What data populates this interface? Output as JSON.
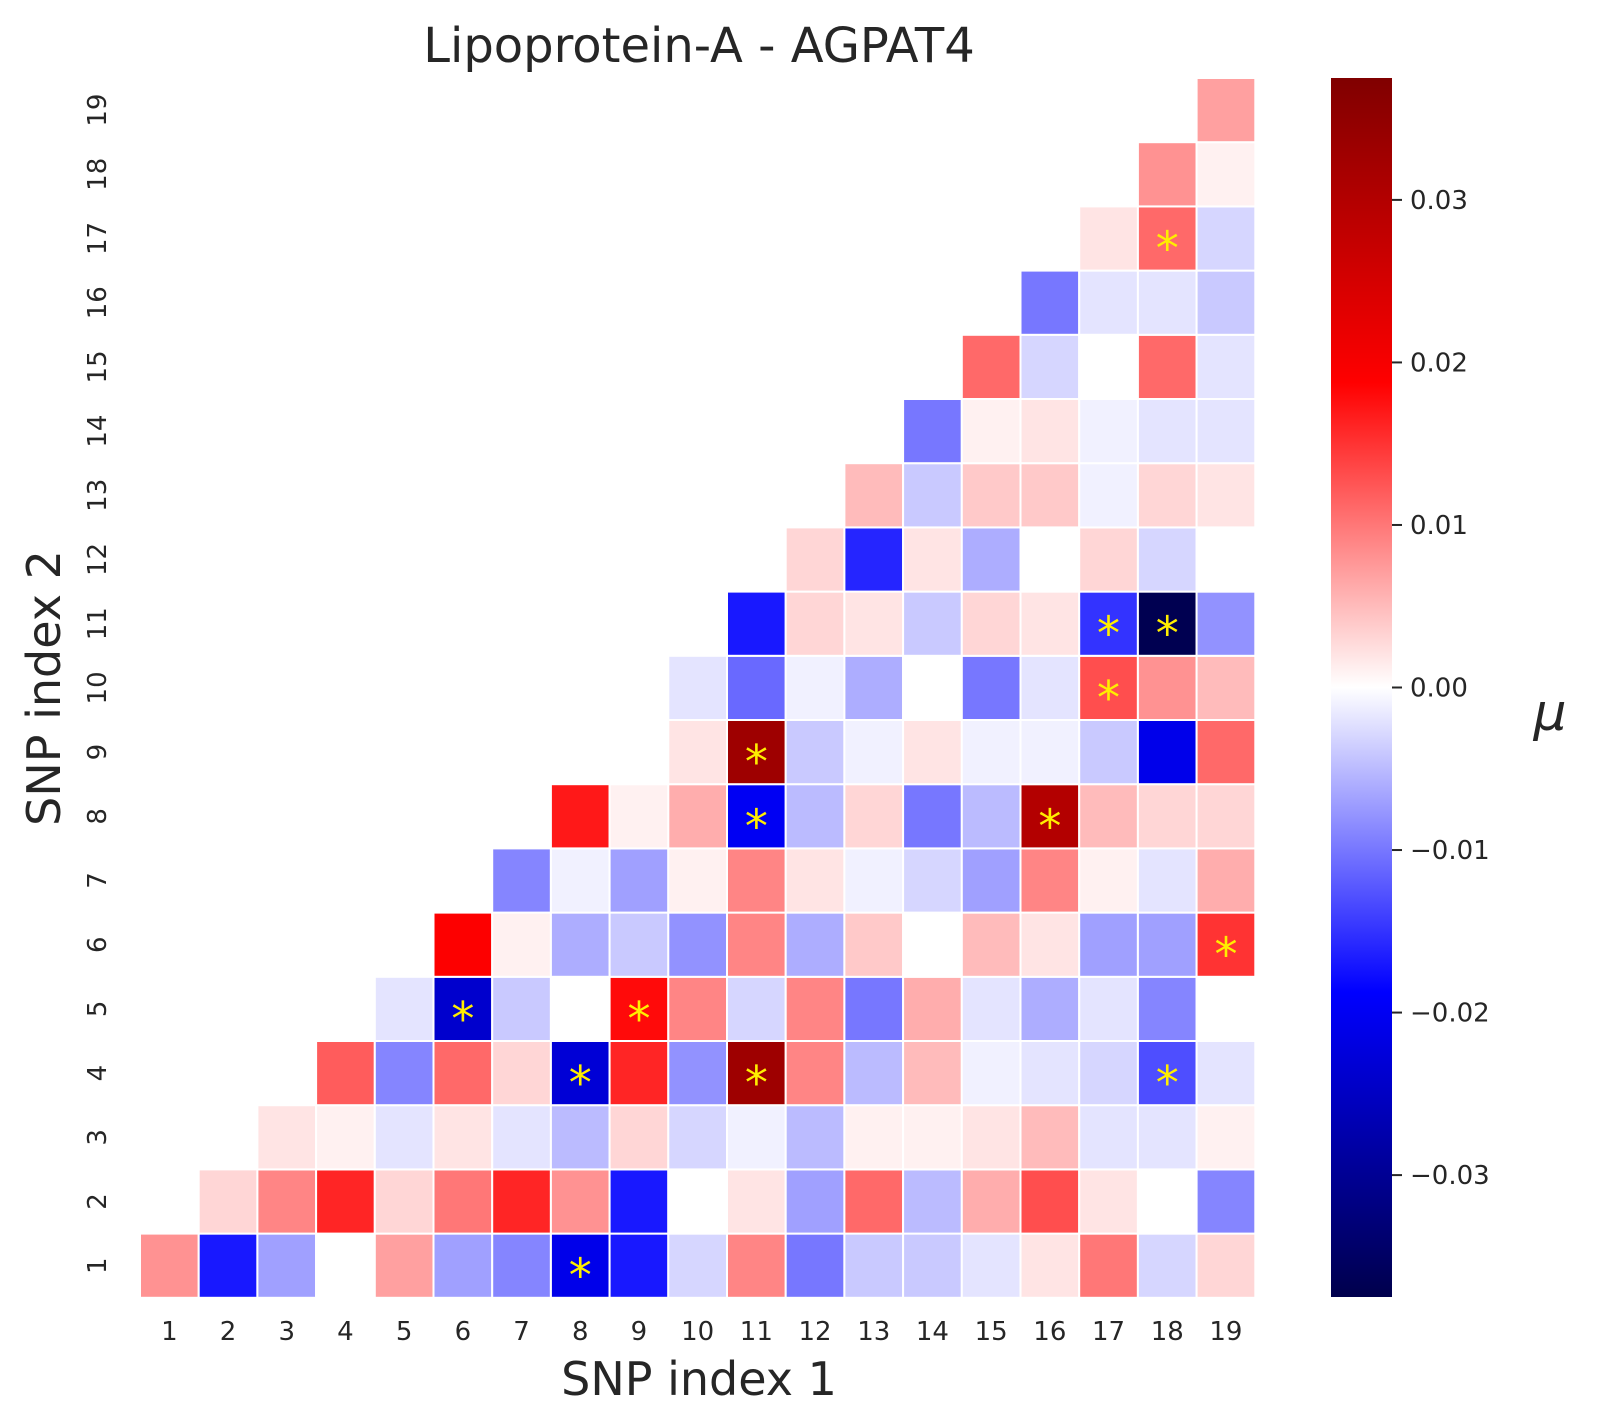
{
  "chart_data": {
    "type": "heatmap",
    "title": "Lipoprotein-A - AGPAT4",
    "xlabel": "SNP index 1",
    "ylabel": "SNP index 2",
    "colorbar_label": "μ",
    "x_ticks": [
      "1",
      "2",
      "3",
      "4",
      "5",
      "6",
      "7",
      "8",
      "9",
      "10",
      "11",
      "12",
      "13",
      "14",
      "15",
      "16",
      "17",
      "18",
      "19"
    ],
    "y_ticks": [
      "1",
      "2",
      "3",
      "4",
      "5",
      "6",
      "7",
      "8",
      "9",
      "10",
      "11",
      "12",
      "13",
      "14",
      "15",
      "16",
      "17",
      "18",
      "19"
    ],
    "colorbar_ticks": [
      -0.03,
      -0.02,
      -0.01,
      0.0,
      0.01,
      0.02,
      0.03
    ],
    "colorbar_tick_labels": [
      "−0.03",
      "−0.02",
      "−0.01",
      "0.00",
      "0.01",
      "0.02",
      "0.03"
    ],
    "vmin": -0.0375,
    "vmax": 0.0375,
    "colormap": "seismic",
    "mask": "lower-triangle (only cells with x >= y shown)",
    "grid": false,
    "significance_marker": "*",
    "significance_color": "#ffee00",
    "rows_by_y": {
      "1": [
        0.008,
        -0.017,
        -0.007,
        0.0,
        0.007,
        -0.007,
        -0.009,
        -0.021,
        -0.017,
        -0.003,
        0.009,
        -0.01,
        -0.004,
        -0.004,
        -0.002,
        0.002,
        0.01,
        -0.003,
        0.003
      ],
      "2": [
        null,
        0.003,
        0.009,
        0.016,
        0.003,
        0.01,
        0.016,
        0.008,
        -0.017,
        0.0,
        0.002,
        -0.007,
        0.011,
        -0.005,
        0.006,
        0.013,
        0.002,
        0.0,
        -0.009
      ],
      "3": [
        null,
        null,
        0.002,
        0.001,
        -0.002,
        0.002,
        -0.002,
        -0.005,
        0.003,
        -0.003,
        -0.001,
        -0.005,
        0.001,
        0.001,
        0.002,
        0.005,
        -0.002,
        -0.002,
        0.001
      ],
      "4": [
        null,
        null,
        null,
        0.012,
        -0.009,
        0.011,
        0.003,
        -0.023,
        0.016,
        -0.008,
        0.033,
        0.009,
        -0.005,
        0.005,
        -0.001,
        -0.002,
        -0.003,
        -0.013,
        -0.002
      ],
      "5": [
        null,
        null,
        null,
        null,
        -0.002,
        -0.024,
        -0.004,
        0.0,
        0.018,
        0.009,
        -0.003,
        0.009,
        -0.01,
        0.006,
        -0.002,
        -0.006,
        -0.002,
        -0.009,
        0.0
      ],
      "6": [
        null,
        null,
        null,
        null,
        null,
        0.019,
        0.001,
        -0.006,
        -0.004,
        -0.008,
        0.009,
        -0.006,
        0.004,
        0.0,
        0.005,
        0.002,
        -0.007,
        -0.007,
        0.015
      ],
      "7": [
        null,
        null,
        null,
        null,
        null,
        null,
        -0.009,
        -0.001,
        -0.007,
        0.001,
        0.009,
        0.002,
        -0.001,
        -0.003,
        -0.007,
        0.009,
        0.001,
        -0.002,
        0.006
      ],
      "8": [
        null,
        null,
        null,
        null,
        null,
        null,
        null,
        0.017,
        0.001,
        0.006,
        -0.02,
        -0.005,
        0.003,
        -0.01,
        -0.005,
        0.03,
        0.005,
        0.003,
        0.003
      ],
      "9": [
        null,
        null,
        null,
        null,
        null,
        null,
        null,
        null,
        0.0,
        0.002,
        0.033,
        -0.004,
        -0.001,
        0.002,
        -0.001,
        -0.001,
        -0.004,
        -0.021,
        0.011
      ],
      "10": [
        null,
        null,
        null,
        null,
        null,
        null,
        null,
        null,
        null,
        -0.002,
        -0.011,
        -0.001,
        -0.006,
        0.0,
        -0.01,
        -0.002,
        0.013,
        0.008,
        0.005
      ],
      "11": [
        null,
        null,
        null,
        null,
        null,
        null,
        null,
        null,
        null,
        null,
        -0.017,
        0.003,
        0.002,
        -0.004,
        0.003,
        0.002,
        -0.015,
        -0.037,
        -0.008
      ],
      "12": [
        null,
        null,
        null,
        null,
        null,
        null,
        null,
        null,
        null,
        null,
        null,
        0.003,
        -0.016,
        0.002,
        -0.006,
        0.0,
        0.003,
        -0.003,
        0.0
      ],
      "13": [
        null,
        null,
        null,
        null,
        null,
        null,
        null,
        null,
        null,
        null,
        null,
        null,
        0.005,
        -0.004,
        0.004,
        0.004,
        -0.001,
        0.003,
        0.002
      ],
      "14": [
        null,
        null,
        null,
        null,
        null,
        null,
        null,
        null,
        null,
        null,
        null,
        null,
        null,
        -0.01,
        0.001,
        0.002,
        -0.001,
        -0.002,
        -0.002
      ],
      "15": [
        null,
        null,
        null,
        null,
        null,
        null,
        null,
        null,
        null,
        null,
        null,
        null,
        null,
        null,
        0.011,
        -0.003,
        0.0,
        0.011,
        -0.002
      ],
      "16": [
        null,
        null,
        null,
        null,
        null,
        null,
        null,
        null,
        null,
        null,
        null,
        null,
        null,
        null,
        null,
        -0.01,
        -0.002,
        -0.002,
        -0.004
      ],
      "17": [
        null,
        null,
        null,
        null,
        null,
        null,
        null,
        null,
        null,
        null,
        null,
        null,
        null,
        null,
        null,
        null,
        0.002,
        0.011,
        -0.003
      ],
      "18": [
        null,
        null,
        null,
        null,
        null,
        null,
        null,
        null,
        null,
        null,
        null,
        null,
        null,
        null,
        null,
        null,
        null,
        0.008,
        0.001
      ],
      "19": [
        null,
        null,
        null,
        null,
        null,
        null,
        null,
        null,
        null,
        null,
        null,
        null,
        null,
        null,
        null,
        null,
        null,
        null,
        0.007
      ]
    },
    "significant_cells": [
      {
        "x": 8,
        "y": 1
      },
      {
        "x": 8,
        "y": 4
      },
      {
        "x": 11,
        "y": 4
      },
      {
        "x": 18,
        "y": 4
      },
      {
        "x": 6,
        "y": 5
      },
      {
        "x": 9,
        "y": 5
      },
      {
        "x": 19,
        "y": 6
      },
      {
        "x": 11,
        "y": 8
      },
      {
        "x": 16,
        "y": 8
      },
      {
        "x": 11,
        "y": 9
      },
      {
        "x": 17,
        "y": 10
      },
      {
        "x": 17,
        "y": 11
      },
      {
        "x": 18,
        "y": 11
      },
      {
        "x": 18,
        "y": 17
      }
    ]
  }
}
